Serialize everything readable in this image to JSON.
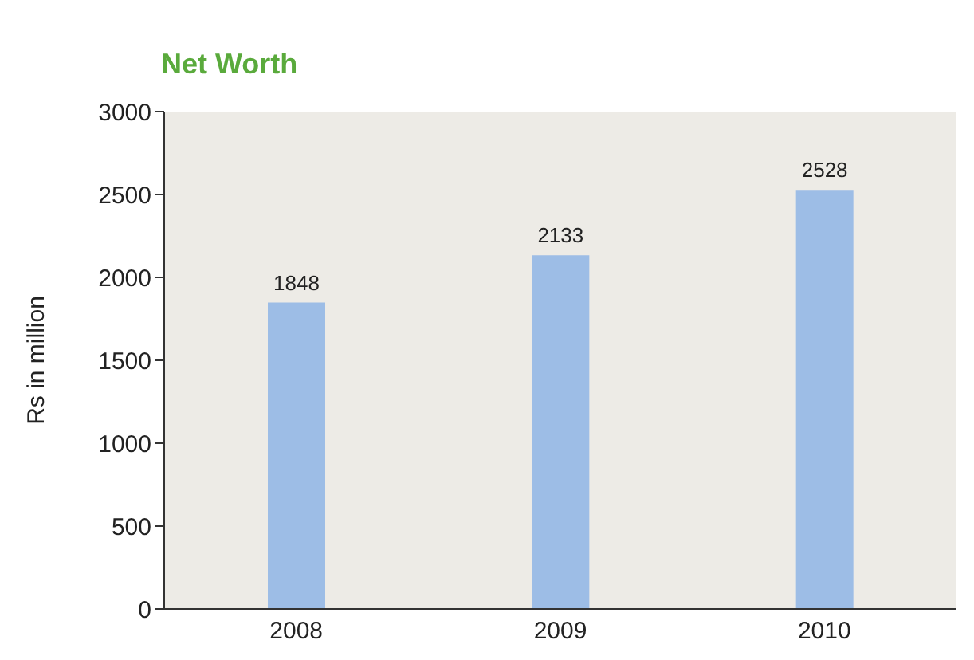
{
  "chart_data": {
    "type": "bar",
    "title": "Net Worth",
    "ylabel": "Rs in million",
    "categories": [
      "2008",
      "2009",
      "2010"
    ],
    "series": [
      {
        "color": "#9dbde6",
        "values": [
          1848,
          2133,
          2528
        ]
      }
    ],
    "ylim": [
      0,
      3000
    ],
    "yticks": [
      0,
      500,
      1000,
      1500,
      2000,
      2500,
      3000
    ],
    "data_labels": true,
    "grid": false,
    "legend": false
  }
}
